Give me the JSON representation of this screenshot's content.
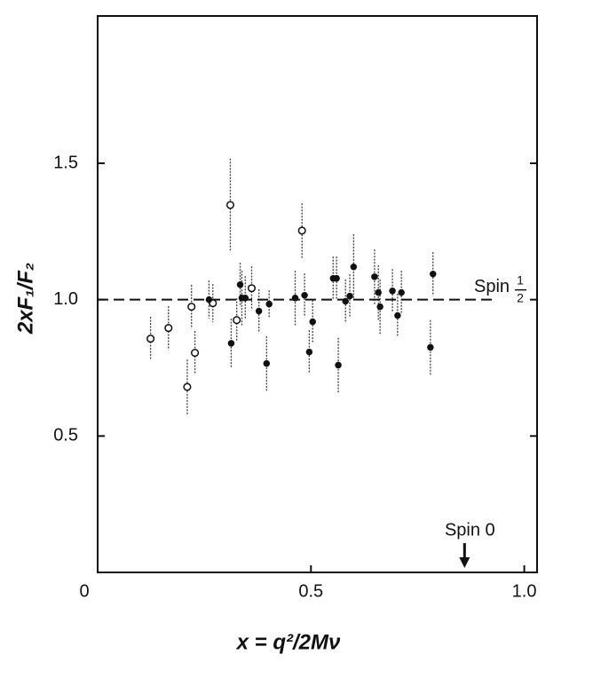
{
  "chart_data": {
    "type": "scatter",
    "xlabel": "x = q²/2Mν",
    "ylabel": "2xF₁/F₂",
    "xlim": [
      0,
      1.03
    ],
    "ylim": [
      0,
      2.04
    ],
    "xticks": [
      0,
      0.5,
      {
        "value": 1,
        "label": "1.0"
      }
    ],
    "yticks": [
      0.5,
      {
        "value": 1,
        "label": "1.0"
      },
      1.5
    ],
    "grid": false,
    "series": [
      {
        "marker": "open",
        "color": "#111111",
        "x": [
          0.124,
          0.166,
          0.21,
          0.22,
          0.228,
          0.27,
          0.311,
          0.326,
          0.361,
          0.479
        ],
        "values": [
          0.857,
          0.896,
          0.68,
          0.974,
          0.805,
          0.987,
          1.347,
          0.925,
          1.042,
          1.253
        ],
        "errors": [
          0.08,
          0.08,
          0.1,
          0.08,
          0.08,
          0.07,
          0.17,
          0.08,
          0.08,
          0.1
        ]
      },
      {
        "marker": "filled",
        "color": "#111111",
        "x": [
          0.261,
          0.313,
          0.334,
          0.338,
          0.346,
          0.378,
          0.396,
          0.402,
          0.463,
          0.485,
          0.496,
          0.504,
          0.552,
          0.56,
          0.564,
          0.581,
          0.591,
          0.6,
          0.649,
          0.658,
          0.662,
          0.691,
          0.703,
          0.712,
          0.78,
          0.786
        ],
        "values": [
          1.0,
          0.84,
          1.055,
          1.006,
          1.006,
          0.958,
          0.766,
          0.984,
          1.006,
          1.016,
          0.808,
          0.919,
          1.078,
          1.078,
          0.76,
          0.994,
          1.013,
          1.12,
          1.084,
          1.026,
          0.974,
          1.032,
          0.942,
          1.026,
          0.825,
          1.094
        ],
        "errors": [
          0.07,
          0.09,
          0.08,
          0.1,
          0.08,
          0.08,
          0.1,
          0.05,
          0.1,
          0.08,
          0.08,
          0.08,
          0.08,
          0.08,
          0.1,
          0.08,
          0.08,
          0.12,
          0.1,
          0.1,
          0.1,
          0.08,
          0.08,
          0.08,
          0.1,
          0.08
        ]
      }
    ],
    "reference_line": {
      "y": 1,
      "text": "Spin",
      "numerator": "1",
      "denominator": "2"
    },
    "arrow_annotation": {
      "x": 0.86,
      "text": "Spin 0"
    }
  }
}
